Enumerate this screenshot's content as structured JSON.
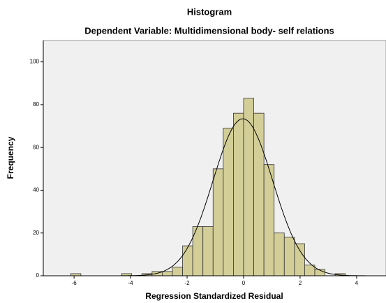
{
  "chart_data": {
    "type": "histogram",
    "title": "Histogram",
    "subtitle": "Dependent Variable: Multidimensional body- self relations",
    "x_label": "Regression Standardized Residual",
    "y_label": "Frequency",
    "bins": [
      -6.12,
      -5.76,
      -5.4,
      -5.04,
      -4.68,
      -4.32,
      -3.96,
      -3.6,
      -3.24,
      -2.88,
      -2.52,
      -2.16,
      -1.8,
      -1.44,
      -1.08,
      -0.72,
      -0.36,
      0,
      0.36,
      0.72,
      1.08,
      1.44,
      1.8,
      2.16,
      2.52,
      2.88,
      3.24,
      3.6
    ],
    "values": [
      1,
      0,
      0,
      0,
      0,
      1,
      0,
      1,
      2,
      2,
      4,
      14,
      23,
      23,
      50,
      69,
      76,
      83,
      76,
      52,
      20,
      18,
      15,
      5,
      3,
      0,
      1
    ],
    "color": "#d3ce97",
    "normal_curve": true,
    "xlim": [
      -7.09,
      5.04
    ],
    "xticks": [
      -6,
      -4,
      -2,
      0,
      2,
      4
    ],
    "ylim": [
      0,
      110
    ],
    "yticks": [
      0,
      20,
      40,
      60,
      80,
      100
    ]
  }
}
